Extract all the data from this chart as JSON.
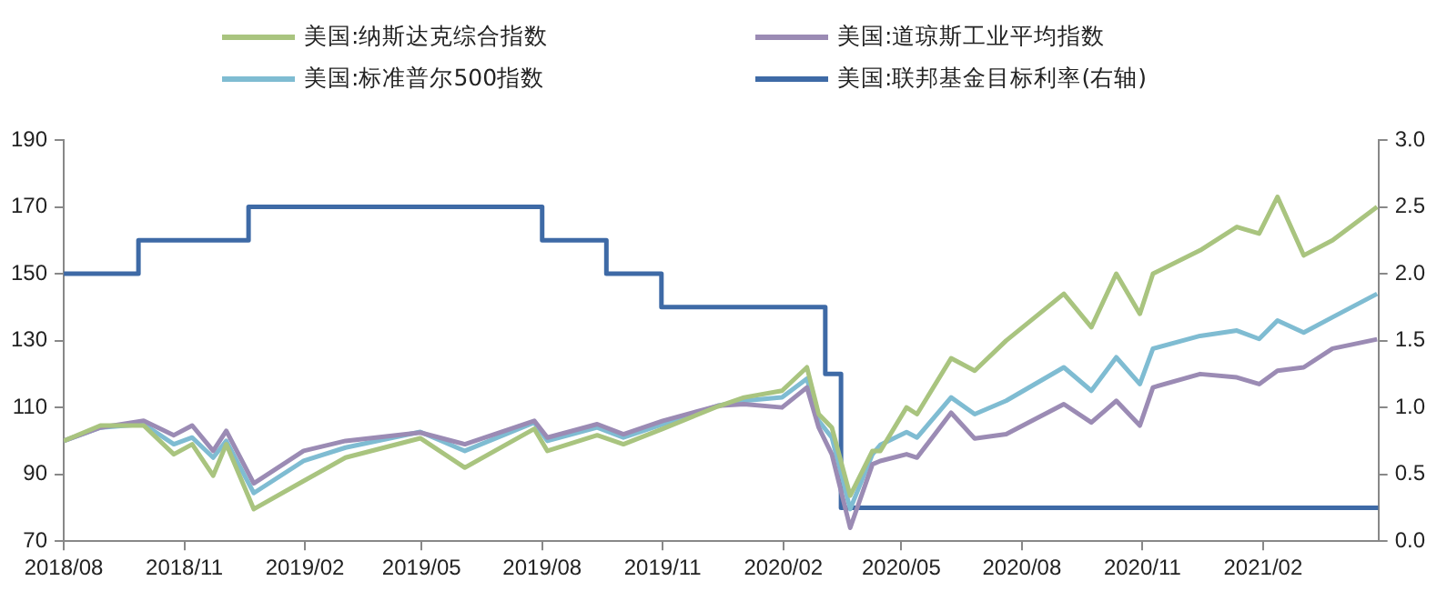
{
  "chart_data": {
    "type": "line",
    "xlim": [
      "2018-08-01",
      "2021-04-30"
    ],
    "xticks": [
      {
        "value": "2018-08-01",
        "label": "2018/08"
      },
      {
        "value": "2018-11-01",
        "label": "2018/11"
      },
      {
        "value": "2019-02-01",
        "label": "2019/02"
      },
      {
        "value": "2019-05-01",
        "label": "2019/05"
      },
      {
        "value": "2019-08-01",
        "label": "2019/08"
      },
      {
        "value": "2019-11-01",
        "label": "2019/11"
      },
      {
        "value": "2020-02-01",
        "label": "2020/02"
      },
      {
        "value": "2020-05-01",
        "label": "2020/05"
      },
      {
        "value": "2020-08-01",
        "label": "2020/08"
      },
      {
        "value": "2020-11-01",
        "label": "2020/11"
      },
      {
        "value": "2021-02-01",
        "label": "2021/02"
      }
    ],
    "ylim": [
      70,
      190
    ],
    "yticks": [
      70,
      90,
      110,
      130,
      150,
      170,
      190
    ],
    "y2lim": [
      0,
      3
    ],
    "y2ticks": [
      {
        "value": 0,
        "label": "0.0"
      },
      {
        "value": 0.5,
        "label": "0.5"
      },
      {
        "value": 1,
        "label": "1.0"
      },
      {
        "value": 1.5,
        "label": "1.5"
      },
      {
        "value": 2,
        "label": "2.0"
      },
      {
        "value": 2.5,
        "label": "2.5"
      },
      {
        "value": 3,
        "label": "3.0"
      }
    ],
    "grid": false,
    "legend": "top",
    "marker": "none",
    "line_style": "solid",
    "x": [
      "2018-08-01",
      "2018-08-29",
      "2018-10-01",
      "2018-10-24",
      "2018-11-07",
      "2018-11-23",
      "2018-12-03",
      "2018-12-24",
      "2019-01-31",
      "2019-03-04",
      "2019-04-30",
      "2019-06-03",
      "2019-07-26",
      "2019-08-05",
      "2019-09-12",
      "2019-10-02",
      "2019-11-01",
      "2019-12-13",
      "2020-01-02",
      "2020-01-31",
      "2020-02-19",
      "2020-02-28",
      "2020-03-09",
      "2020-03-23",
      "2020-04-09",
      "2020-04-15",
      "2020-05-05",
      "2020-05-13",
      "2020-06-08",
      "2020-06-26",
      "2020-07-20",
      "2020-09-02",
      "2020-09-23",
      "2020-10-12",
      "2020-10-30",
      "2020-11-09",
      "2020-12-15",
      "2021-01-12",
      "2021-01-29",
      "2021-02-12",
      "2021-03-04",
      "2021-03-26",
      "2021-04-29"
    ],
    "series": [
      {
        "name": "美国:纳斯达克综合指数",
        "color": "#a9c47f",
        "values": [
          100,
          104.6,
          104.6,
          96,
          99,
          89.6,
          99,
          79.6,
          88,
          95,
          100.8,
          92,
          103.6,
          97,
          101.7,
          99,
          103.6,
          110.3,
          113,
          115,
          122,
          108,
          104,
          83.6,
          97,
          97,
          110,
          108,
          124.7,
          121,
          130,
          144,
          134,
          150,
          138,
          150,
          157,
          164,
          162,
          173,
          155.5,
          160,
          170
        ]
      },
      {
        "name": "美国:道琼斯工业平均指数",
        "color": "#9b8bb4",
        "values": [
          100,
          104,
          106,
          101.7,
          104.6,
          97,
          103,
          87.3,
          97,
          100,
          102.5,
          99,
          106,
          101,
          105,
          102,
          106,
          110.5,
          111,
          110,
          116,
          104,
          96,
          74,
          93,
          94,
          96,
          95,
          108.4,
          100.7,
          102,
          111,
          105.5,
          112,
          104.6,
          116,
          120,
          119,
          117,
          121,
          122,
          127.6,
          130.4
        ]
      },
      {
        "name": "美国:标准普尔500指数",
        "color": "#7fbcd2",
        "values": [
          100,
          104,
          105,
          99,
          101,
          95,
          100,
          84.4,
          94,
          98,
          102.7,
          97,
          105.5,
          100,
          104,
          101,
          105,
          110.5,
          112,
          113,
          118.6,
          106,
          101,
          79.6,
          96,
          98.8,
          102.6,
          101,
          113,
          108,
          112,
          122,
          115,
          125,
          117,
          127.6,
          131.4,
          133,
          130.5,
          136,
          132.4,
          137,
          144
        ]
      },
      {
        "name": "美国:联邦基金目标利率(右轴)",
        "color": "#3e6aa6",
        "type": "step",
        "axis": "y2",
        "x": [
          "2018-08-01",
          "2018-09-27",
          "2018-12-20",
          "2019-08-01",
          "2019-09-19",
          "2019-10-31",
          "2020-03-04",
          "2020-03-16",
          "2021-04-30"
        ],
        "values": [
          2,
          2.25,
          2.5,
          2.25,
          2,
          1.75,
          1.25,
          0.25,
          0.25
        ]
      }
    ]
  }
}
